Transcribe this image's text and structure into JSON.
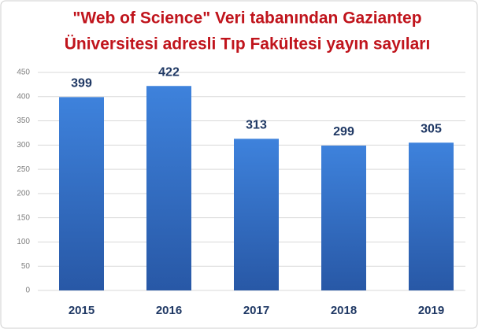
{
  "chart_data": {
    "type": "bar",
    "title": [
      "\"Web of Science\" Veri tabanından Gaziantep",
      "Üniversitesi adresli Tıp Fakültesi yayın sayıları"
    ],
    "categories": [
      "2015",
      "2016",
      "2017",
      "2018",
      "2019"
    ],
    "values": [
      399,
      422,
      313,
      299,
      305
    ],
    "color": "#3a78cf",
    "ylim": [
      0,
      450
    ],
    "yticks": [
      0,
      50,
      100,
      150,
      200,
      250,
      300,
      350,
      400,
      450
    ],
    "grid": true
  }
}
